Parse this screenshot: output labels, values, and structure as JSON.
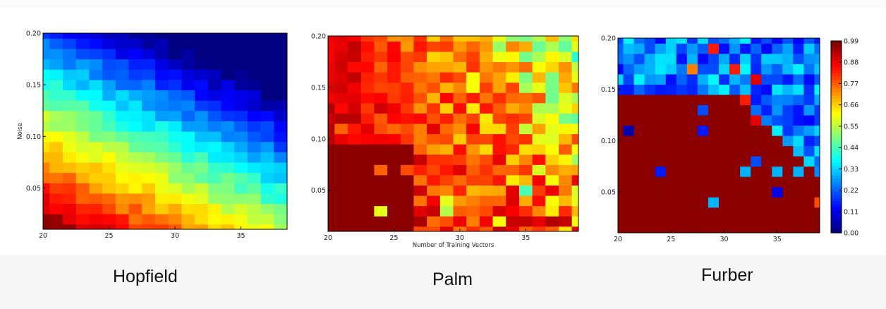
{
  "chart_data": [
    {
      "type": "heatmap",
      "title": "Hopfield",
      "xlabel": "",
      "ylabel": "Noise",
      "xlim": [
        20,
        38.5
      ],
      "ylim": [
        0.01,
        0.2
      ],
      "xticks": [
        "20",
        "25",
        "30",
        "35"
      ],
      "yticks": [
        "0.05",
        "0.10",
        "0.15",
        "0.20"
      ],
      "colormap": "jet",
      "x": [
        20,
        21,
        22,
        23,
        24,
        25,
        26,
        27,
        28,
        29,
        30,
        31,
        32,
        33,
        34,
        35,
        36,
        37,
        38
      ],
      "y": [
        0.01,
        0.02,
        0.03,
        0.04,
        0.05,
        0.06,
        0.07,
        0.08,
        0.09,
        0.1,
        0.11,
        0.12,
        0.13,
        0.14,
        0.15,
        0.16,
        0.17,
        0.18,
        0.19,
        0.2
      ],
      "pattern": "gradient"
    },
    {
      "type": "heatmap",
      "title": "Palm",
      "xlabel": "Number of Training Vectors",
      "ylabel": "",
      "xlim": [
        20,
        39
      ],
      "ylim": [
        0.01,
        0.2
      ],
      "xticks": [
        "20",
        "25",
        "30",
        "35"
      ],
      "yticks": [
        "0.05",
        "0.10",
        "0.15",
        "0.20"
      ],
      "colormap": "jet",
      "x": [
        20,
        21,
        22,
        23,
        24,
        25,
        26,
        27,
        28,
        29,
        30,
        31,
        32,
        33,
        34,
        35,
        36,
        37,
        38,
        39
      ],
      "y": [
        0.01,
        0.02,
        0.03,
        0.04,
        0.05,
        0.06,
        0.07,
        0.08,
        0.09,
        0.1,
        0.11,
        0.12,
        0.13,
        0.14,
        0.15,
        0.16,
        0.17,
        0.18,
        0.19,
        0.2
      ],
      "pattern": "noisy-high",
      "spots": [
        [
          21,
          0.11,
          0.78
        ],
        [
          24,
          0.11,
          0.8
        ],
        [
          24,
          0.07,
          0.78
        ],
        [
          26,
          0.07,
          0.8
        ],
        [
          24,
          0.03,
          0.6
        ],
        [
          29,
          0.03,
          0.55
        ],
        [
          29,
          0.04,
          0.6
        ],
        [
          31,
          0.04,
          0.75
        ],
        [
          33,
          0.02,
          0.62
        ],
        [
          35,
          0.05,
          0.45
        ],
        [
          37,
          0.04,
          0.62
        ],
        [
          37,
          0.11,
          0.6
        ],
        [
          36,
          0.19,
          0.48
        ]
      ]
    },
    {
      "type": "heatmap",
      "title": "Furber",
      "xlabel": "",
      "ylabel": "",
      "xlim": [
        20,
        39
      ],
      "ylim": [
        0.01,
        0.2
      ],
      "xticks": [
        "20",
        "25",
        "30",
        "35"
      ],
      "yticks": [
        "0.05",
        "0.10",
        "0.15",
        "0.20"
      ],
      "colormap": "jet",
      "colorbar": {
        "min": 0.0,
        "max": 0.99,
        "ticks": [
          "0.00",
          "0.11",
          "0.22",
          "0.33",
          "0.44",
          "0.55",
          "0.66",
          "0.77",
          "0.88",
          "0.99"
        ]
      },
      "x": [
        20,
        21,
        22,
        23,
        24,
        25,
        26,
        27,
        28,
        29,
        30,
        31,
        32,
        33,
        34,
        35,
        36,
        37,
        38,
        39
      ],
      "y": [
        0.01,
        0.02,
        0.03,
        0.04,
        0.05,
        0.06,
        0.07,
        0.08,
        0.09,
        0.1,
        0.11,
        0.12,
        0.13,
        0.14,
        0.15,
        0.16,
        0.17,
        0.18,
        0.19,
        0.2
      ],
      "pattern": "boundary",
      "spots": [
        [
          21,
          0.11,
          0.05
        ],
        [
          24,
          0.07,
          0.15
        ],
        [
          28,
          0.11,
          0.15
        ],
        [
          28,
          0.13,
          0.2
        ],
        [
          29,
          0.04,
          0.3
        ],
        [
          33,
          0.12,
          0.9
        ],
        [
          32,
          0.14,
          0.85
        ],
        [
          31,
          0.17,
          0.85
        ],
        [
          33,
          0.16,
          0.9
        ],
        [
          27,
          0.17,
          0.75
        ],
        [
          32,
          0.07,
          0.3
        ],
        [
          33,
          0.08,
          0.2
        ],
        [
          35,
          0.05,
          0.1
        ],
        [
          35,
          0.07,
          0.3
        ],
        [
          37,
          0.07,
          0.3
        ],
        [
          39,
          0.04,
          0.8
        ],
        [
          29,
          0.19,
          0.85
        ]
      ]
    }
  ]
}
